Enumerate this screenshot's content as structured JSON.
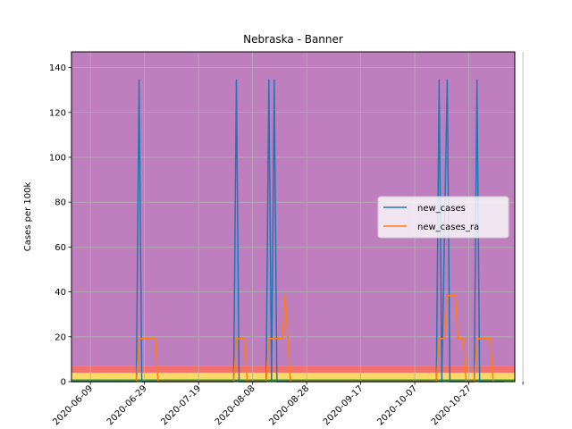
{
  "chart_data": {
    "type": "line",
    "title": "Nebraska - Banner",
    "xlabel": "",
    "ylabel": "Cases per 100k",
    "ylim": [
      0,
      147
    ],
    "xlim": [
      "2020-06-02",
      "2020-11-13"
    ],
    "y_ticks": [
      0,
      20,
      40,
      60,
      80,
      100,
      120,
      140
    ],
    "x_ticks": [
      "2020-06-09",
      "2020-06-29",
      "2020-07-19",
      "2020-08-08",
      "2020-08-28",
      "2020-09-17",
      "2020-10-07",
      "2020-10-27"
    ],
    "grid": true,
    "legend_position": "center-right",
    "background_bands": [
      {
        "from": 0,
        "to": 1,
        "color": "#2ca02c"
      },
      {
        "from": 1,
        "to": 4,
        "color": "#ffd966"
      },
      {
        "from": 4,
        "to": 7,
        "color": "#f4716b"
      },
      {
        "from": 7,
        "to": 147,
        "color": "#bf7fbf"
      }
    ],
    "series": [
      {
        "name": "new_cases",
        "color": "#1f77b4",
        "points": [
          [
            "2020-06-02",
            0
          ],
          [
            "2020-06-26",
            0
          ],
          [
            "2020-06-27",
            134.5
          ],
          [
            "2020-06-28",
            0
          ],
          [
            "2020-08-01",
            0
          ],
          [
            "2020-08-02",
            134.5
          ],
          [
            "2020-08-03",
            0
          ],
          [
            "2020-08-13",
            0
          ],
          [
            "2020-08-14",
            134.5
          ],
          [
            "2020-08-15",
            0
          ],
          [
            "2020-08-16",
            134.5
          ],
          [
            "2020-08-17",
            0
          ],
          [
            "2020-10-15",
            0
          ],
          [
            "2020-10-16",
            134.5
          ],
          [
            "2020-10-17",
            0
          ],
          [
            "2020-10-19",
            134.5
          ],
          [
            "2020-10-20",
            0
          ],
          [
            "2020-10-29",
            0
          ],
          [
            "2020-10-30",
            134.5
          ],
          [
            "2020-10-31",
            0
          ],
          [
            "2020-11-09",
            0
          ]
        ]
      },
      {
        "name": "new_cases_ra",
        "color": "#ff7f0e",
        "points": [
          [
            "2020-06-26",
            0
          ],
          [
            "2020-06-27",
            19.2
          ],
          [
            "2020-07-03",
            19.2
          ],
          [
            "2020-07-04",
            0
          ],
          [
            "2020-08-01",
            0
          ],
          [
            "2020-08-02",
            19.2
          ],
          [
            "2020-08-05",
            19.2
          ],
          [
            "2020-08-06",
            0
          ],
          [
            "2020-08-13",
            0
          ],
          [
            "2020-08-14",
            19.2
          ],
          [
            "2020-08-15",
            19.2
          ],
          [
            "2020-08-16",
            19.2
          ],
          [
            "2020-08-19",
            19.2
          ],
          [
            "2020-08-20",
            38.4
          ],
          [
            "2020-08-21",
            19.2
          ],
          [
            "2020-08-22",
            0
          ],
          [
            "2020-10-15",
            0
          ],
          [
            "2020-10-16",
            19.2
          ],
          [
            "2020-10-18",
            19.2
          ],
          [
            "2020-10-19",
            38.4
          ],
          [
            "2020-10-22",
            38.4
          ],
          [
            "2020-10-23",
            19.2
          ],
          [
            "2020-10-25",
            19.2
          ],
          [
            "2020-10-26",
            0
          ],
          [
            "2020-10-29",
            0
          ],
          [
            "2020-10-30",
            19.2
          ],
          [
            "2020-11-04",
            19.2
          ],
          [
            "2020-11-05",
            0
          ]
        ]
      }
    ]
  }
}
